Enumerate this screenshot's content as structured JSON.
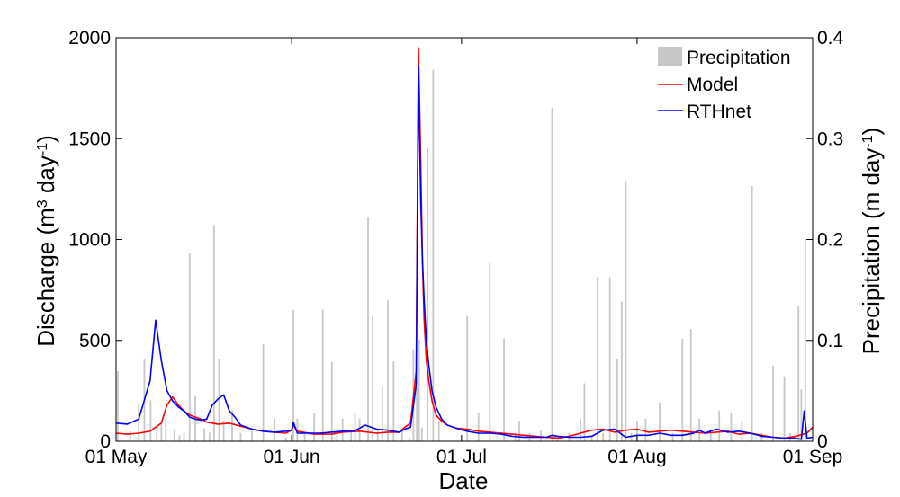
{
  "chart_data": {
    "type": "line",
    "xlabel": "Date",
    "ylabel_left": {
      "base": "Discharge (m",
      "sup1": "3",
      "mid": " day",
      "sup2": "-1",
      "end": ")"
    },
    "ylabel_right": {
      "base": "Precipitation (m day",
      "sup": "-1",
      "end": ")"
    },
    "x_ticks": [
      "01 May",
      "01 Jun",
      "01 Jul",
      "01 Aug",
      "01 Sep"
    ],
    "x_tick_days": [
      0,
      31,
      61,
      92,
      123
    ],
    "xlim_days": [
      0,
      123
    ],
    "ylim_left": [
      0,
      2000
    ],
    "ylim_right": [
      0,
      0.4
    ],
    "y_ticks_left": [
      "0",
      "500",
      "1000",
      "1500",
      "2000"
    ],
    "y_ticks_right": [
      "0",
      "0.1",
      "0.2",
      "0.3",
      "0.4"
    ],
    "legend_position": "top-right",
    "grid": false,
    "colors": {
      "precipitation": "#c8c8c8",
      "model": "#ff0000",
      "rthnet": "#0000ff"
    },
    "series": [
      {
        "name": "Precipitation",
        "axis": "right",
        "style": "bar",
        "x_days": [
          0.3,
          2.5,
          4.0,
          5.0,
          6.1,
          7.2,
          8.0,
          8.8,
          10.3,
          11.2,
          12.0,
          13.0,
          14.0,
          15.6,
          16.5,
          17.3,
          18.2,
          19.0,
          20.5,
          22.0,
          24.0,
          26.0,
          28.0,
          30.0,
          31.3,
          32.0,
          33.3,
          35.0,
          36.5,
          38.1,
          39.0,
          40.0,
          41.5,
          42.2,
          43.0,
          44.5,
          45.3,
          46.2,
          47.0,
          48.0,
          49.0,
          50.5,
          51.8,
          52.5,
          53.1,
          53.5,
          54.0,
          55.0,
          56.0,
          57.0,
          58.0,
          59.5,
          60.5,
          62.0,
          64.0,
          66.0,
          68.5,
          70.5,
          71.2,
          73.0,
          75.0,
          77.0,
          78.0,
          80.0,
          82.0,
          82.7,
          84.0,
          85.0,
          86.0,
          87.2,
          88.5,
          89.3,
          90.0,
          91.0,
          92.0,
          93.5,
          96.0,
          98.3,
          100.0,
          101.5,
          103.0,
          105.0,
          106.5,
          108.6,
          110.5,
          112.3,
          114.0,
          116.0,
          118.0,
          119.0,
          120.5,
          121.0,
          121.7,
          122.3
        ],
        "values": [
          0.0694,
          0.0098,
          0.0386,
          0.0818,
          0.0408,
          0.0162,
          0.0184,
          0.0225,
          0.011,
          0.006,
          0.0082,
          0.1862,
          0.0448,
          0.0128,
          0.0086,
          0.2144,
          0.0818,
          0.0204,
          0.0306,
          0.0082,
          0.0103,
          0.0962,
          0.0225,
          0.0038,
          0.1301,
          0.0225,
          0.0082,
          0.0284,
          0.1306,
          0.0786,
          0.0103,
          0.0225,
          0.0092,
          0.0284,
          0.0225,
          0.2224,
          0.1237,
          0.0119,
          0.0545,
          0.1397,
          0.0792,
          0.0124,
          0.0038,
          0.0912,
          0.0534,
          0.1008,
          0.0136,
          0.2906,
          0.3685,
          0.0205,
          0.0,
          0.0,
          0.0,
          0.1242,
          0.0286,
          0.1765,
          0.1018,
          0.0082,
          0.0204,
          0.0082,
          0.0103,
          0.3308,
          0.0038,
          0.0082,
          0.0225,
          0.0575,
          0.0061,
          0.1627,
          0.0082,
          0.1627,
          0.0818,
          0.1384,
          0.2577,
          0.0082,
          0.0204,
          0.0225,
          0.0384,
          0.0082,
          0.1018,
          0.1111,
          0.0225,
          0.0082,
          0.0306,
          0.0284,
          0.0204,
          0.2532,
          0.0082,
          0.0749,
          0.0645,
          0.0082,
          0.1342,
          0.0514,
          0.2,
          0.0
        ],
        "note": "values are precipitation depths in m/day read off the right axis"
      },
      {
        "name": "Model",
        "axis": "left",
        "x_days": [
          0,
          2,
          4,
          6,
          8,
          9,
          10,
          11,
          12,
          13,
          14,
          15,
          16,
          18,
          20,
          22,
          24,
          26,
          28,
          30,
          31,
          31.3,
          32,
          35,
          38,
          40,
          43,
          46,
          48,
          50,
          51,
          52,
          53,
          53.4,
          53.8,
          54.1,
          54.4,
          54.8,
          55.2,
          55.8,
          56.5,
          57.5,
          58.5,
          60,
          62,
          64,
          66,
          68,
          70,
          72,
          74,
          76,
          78,
          80,
          82,
          84,
          86,
          88,
          90,
          92,
          94,
          96,
          98,
          100,
          102,
          104,
          106,
          108,
          110,
          112,
          114,
          116,
          118,
          120,
          122,
          123
        ],
        "values": [
          40,
          35,
          40,
          50,
          90,
          180,
          220,
          180,
          150,
          130,
          120,
          110,
          95,
          85,
          90,
          75,
          60,
          50,
          45,
          40,
          55,
          80,
          50,
          35,
          35,
          45,
          50,
          40,
          45,
          45,
          70,
          90,
          350,
          1950,
          1400,
          900,
          600,
          400,
          300,
          200,
          130,
          100,
          80,
          65,
          60,
          50,
          45,
          40,
          35,
          30,
          25,
          20,
          15,
          25,
          40,
          55,
          60,
          45,
          55,
          60,
          45,
          50,
          55,
          50,
          45,
          40,
          45,
          50,
          35,
          40,
          30,
          20,
          15,
          25,
          40,
          70
        ]
      },
      {
        "name": "RTHnet",
        "axis": "left",
        "x_days": [
          0,
          2,
          4,
          6,
          7,
          8,
          9,
          10,
          11,
          12,
          13,
          14,
          15,
          16,
          17,
          18,
          19,
          20,
          21,
          22,
          24,
          26,
          28,
          30,
          31,
          31.3,
          32,
          34,
          36,
          38,
          40,
          42,
          44,
          46,
          48,
          50,
          51,
          52,
          53,
          53.4,
          53.8,
          54.1,
          54.4,
          54.8,
          55.2,
          55.8,
          56.5,
          57.5,
          58.5,
          60,
          62,
          64,
          66,
          68,
          69,
          70,
          72,
          74,
          76,
          77,
          78,
          80,
          82,
          84,
          86,
          88,
          90,
          92,
          94,
          96,
          98,
          100,
          102,
          103,
          104,
          106,
          108,
          110,
          112,
          114,
          116,
          118,
          120,
          121,
          121.5,
          122,
          123
        ],
        "values": [
          90,
          85,
          110,
          300,
          600,
          400,
          250,
          200,
          170,
          150,
          120,
          110,
          105,
          110,
          180,
          210,
          230,
          150,
          120,
          80,
          60,
          50,
          45,
          50,
          55,
          95,
          40,
          40,
          40,
          45,
          50,
          50,
          80,
          60,
          55,
          45,
          60,
          70,
          280,
          1860,
          1200,
          900,
          700,
          500,
          380,
          250,
          170,
          110,
          80,
          65,
          50,
          40,
          40,
          35,
          30,
          25,
          20,
          20,
          20,
          30,
          25,
          20,
          20,
          25,
          55,
          60,
          20,
          30,
          30,
          40,
          30,
          30,
          40,
          55,
          40,
          60,
          45,
          50,
          40,
          25,
          20,
          15,
          15,
          10,
          150,
          15,
          20
        ]
      }
    ]
  },
  "legend": [
    {
      "label": "Precipitation",
      "swatch": "rect"
    },
    {
      "label": "Model",
      "swatch": "line"
    },
    {
      "label": "RTHnet",
      "swatch": "line"
    }
  ]
}
